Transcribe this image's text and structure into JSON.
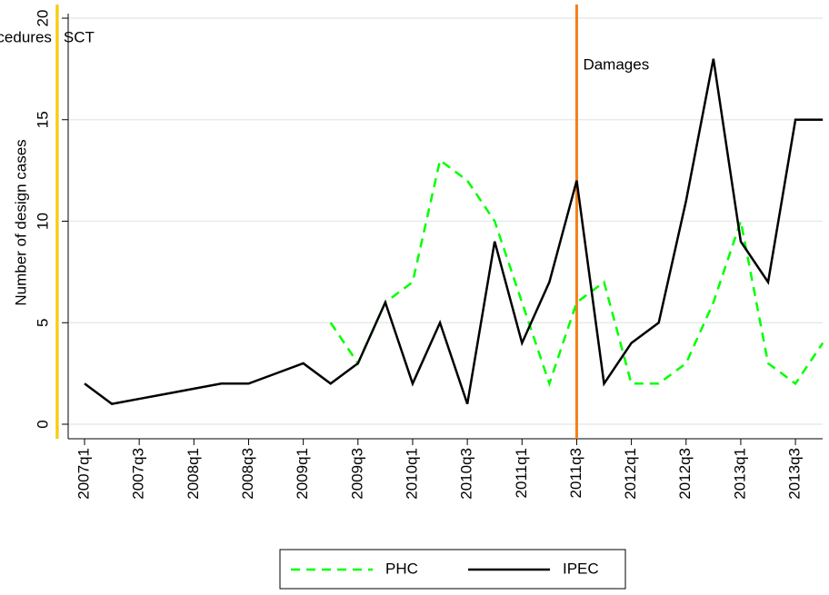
{
  "chart_data": {
    "type": "line",
    "categories": [
      "2007q1",
      null,
      "2007q3",
      null,
      "2008q1",
      null,
      "2008q3",
      null,
      "2009q1",
      null,
      "2009q3",
      null,
      "2010q1",
      null,
      "2010q3",
      null,
      "2011q1",
      null,
      "2011q3",
      null,
      "2012q1",
      null,
      "2012q3",
      null,
      "2013q1",
      null,
      "2013q3",
      null
    ],
    "y_label": "Number of design cases",
    "series": [
      {
        "name": "PHC",
        "color": "#00ff00",
        "dashed": true,
        "values": [
          null,
          null,
          null,
          null,
          null,
          null,
          null,
          null,
          null,
          5,
          3,
          6,
          7,
          13,
          12,
          10,
          6,
          2,
          6,
          7,
          2,
          2,
          3,
          6,
          10,
          3,
          2,
          4
        ]
      },
      {
        "name": "IPEC",
        "color": "#000000",
        "dashed": false,
        "values": [
          2,
          1,
          1.25,
          1.5,
          1.75,
          2,
          2,
          2.5,
          3,
          2,
          3,
          6,
          2,
          5,
          1,
          9,
          4,
          7,
          12,
          2,
          4,
          5,
          11,
          18,
          9,
          7,
          15,
          15
        ]
      }
    ],
    "ylim": [
      0,
      20
    ],
    "yticks": [
      0,
      5,
      10,
      15,
      20
    ],
    "grid": true,
    "events": [
      {
        "x": "2010q4",
        "label": "Costs and procedures",
        "color": "#e8141c",
        "side": "left"
      },
      {
        "x": "2011q3",
        "label": "Damages",
        "color": "#f57f17",
        "side": "right"
      },
      {
        "x": "2012q4",
        "label": "SCT",
        "color": "#f5d000",
        "side": "right"
      }
    ],
    "legend": "bottom"
  }
}
